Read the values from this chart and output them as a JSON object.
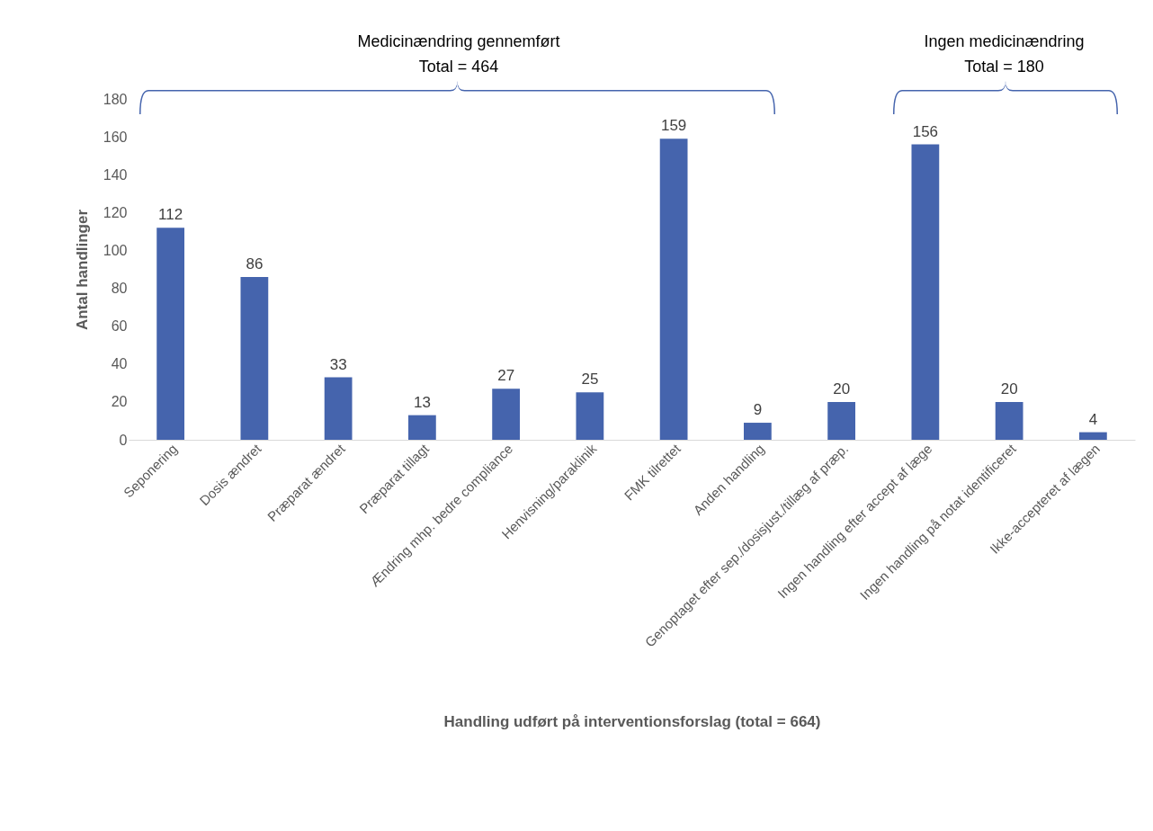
{
  "chart_data": {
    "type": "bar",
    "xlabel": "Handling udført på interventionsforslag (total = 664)",
    "ylabel": "Antal handlinger",
    "categories": [
      "Seponering",
      "Dosis ændret",
      "Præparat ændret",
      "Præparat tillagt",
      "Ændring mhp. bedre compliance",
      "Henvisning/paraklinik",
      "FMK tilrettet",
      "Anden handling",
      "Genoptaget efter sep./dosisjust./tillæg af præp.",
      "Ingen handling efter accept af læge",
      "Ingen handling på notat identificeret",
      "Ikke-accepteret af lægen"
    ],
    "values": [
      112,
      86,
      33,
      13,
      27,
      25,
      159,
      9,
      20,
      156,
      20,
      4
    ],
    "color": "#4564ad",
    "ylim": [
      0,
      180
    ],
    "yticks": [
      0,
      20,
      40,
      60,
      80,
      100,
      120,
      140,
      160,
      180
    ],
    "grid": false,
    "data_labels": true,
    "annotations": [
      "Medicinændring gennemført\nTotal = 464",
      "Ingen medicinændring\nTotal = 180"
    ]
  }
}
